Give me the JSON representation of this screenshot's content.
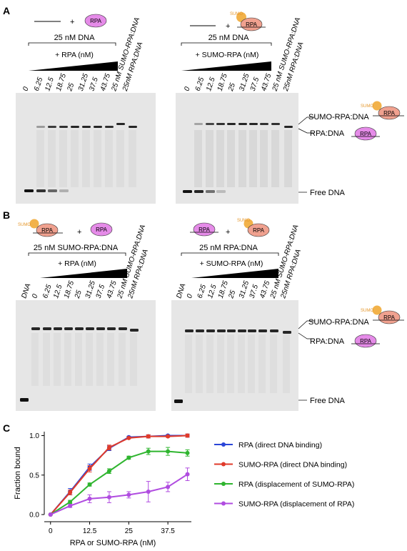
{
  "panels": {
    "A": "A",
    "B": "B",
    "C": "C"
  },
  "panel_A": {
    "left": {
      "rpa_badge": "RPA",
      "plus": "+",
      "dna_conc": "25 nM DNA",
      "titration": "+ RPA (nM)",
      "lanes": [
        "0",
        "6.25",
        "12.5",
        "18.75",
        "25",
        "31.25",
        "37.5",
        "43.75",
        "25 nM SUMO-RPA:DNA",
        "25nM RPA:DNA"
      ]
    },
    "right": {
      "sumo_badge": "SUMO",
      "rpa_badge": "RPA",
      "plus": "+",
      "dna_conc": "25 nM DNA",
      "titration": "+ SUMO-RPA (nM)",
      "lanes": [
        "0",
        "6.25",
        "12.5",
        "18.75",
        "25",
        "31.25",
        "37.5",
        "43.75",
        "25 nM SUMO-RPA:DNA",
        "25nM RPA:DNA"
      ]
    },
    "side_labels": {
      "sumo_rpa_dna": "SUMO-RPA:DNA",
      "rpa_dna": "RPA:DNA",
      "free_dna": "Free DNA",
      "sumo_badge": "SUMO",
      "rpa_badge": "RPA"
    }
  },
  "panel_B": {
    "left": {
      "sumo_badge": "SUMO",
      "rpa_badge": "RPA",
      "rpa_badge2": "RPA",
      "plus": "+",
      "complex": "25 nM SUMO-RPA:DNA",
      "titration": "+ RPA (nM)",
      "lanes": [
        "DNA",
        "0",
        "6.25",
        "12.5",
        "18.75",
        "25",
        "31.25",
        "37.5",
        "43.75",
        "25 nM SUMO-RPA:DNA",
        "25nM RPA:DNA"
      ]
    },
    "right": {
      "rpa_badge": "RPA",
      "sumo_badge": "SUMO",
      "rpa_badge2": "RPA",
      "plus": "+",
      "complex": "25 nM RPA:DNA",
      "titration": "+ SUMO-RPA (nM)",
      "lanes": [
        "DNA",
        "0",
        "6.25",
        "12.5",
        "18.75",
        "25",
        "31.25",
        "37.5",
        "43.75",
        "25 nM SUMO-RPA:DNA",
        "25nM RPA:DNA"
      ]
    },
    "side_labels": {
      "sumo_rpa_dna": "SUMO-RPA:DNA",
      "rpa_dna": "RPA:DNA",
      "free_dna": "Free DNA",
      "sumo_badge": "SUMO",
      "rpa_badge": "RPA"
    }
  },
  "colors": {
    "rpa": "#e58be8",
    "sumo": "#f2b24a",
    "sumo_rpa": "#f0a18f",
    "series_blue": "#2b46d8",
    "series_red": "#e03a2a",
    "series_green": "#2fb52f",
    "series_purple": "#b04ce0"
  },
  "chart_data": {
    "type": "line",
    "xlabel": "RPA or SUMO-RPA (nM)",
    "ylabel": "Fraction bound",
    "xlim": [
      -2,
      45
    ],
    "ylim": [
      0,
      1.05
    ],
    "xticks": [
      "0",
      "12.5",
      "25",
      "37.5"
    ],
    "yticks": [
      "0.0",
      "0.5",
      "1.0"
    ],
    "x": [
      0,
      6.25,
      12.5,
      18.75,
      25,
      31.25,
      37.5,
      43.75
    ],
    "series": [
      {
        "name": "RPA (direct DNA binding)",
        "color": "#2b46d8",
        "values": [
          0,
          0.29,
          0.6,
          0.84,
          0.98,
          0.99,
          1.0,
          1.0
        ],
        "err": [
          0,
          0.04,
          0.04,
          0.03,
          0.01,
          0.02,
          0.01,
          0.02
        ]
      },
      {
        "name": "SUMO-RPA (direct DNA binding)",
        "color": "#e03a2a",
        "values": [
          0,
          0.28,
          0.58,
          0.85,
          0.97,
          0.99,
          0.99,
          1.0
        ],
        "err": [
          0,
          0.03,
          0.04,
          0.03,
          0.01,
          0.02,
          0.01,
          0.02
        ]
      },
      {
        "name": "RPA (displacement of SUMO-RPA)",
        "color": "#2fb52f",
        "values": [
          0,
          0.16,
          0.38,
          0.55,
          0.72,
          0.8,
          0.8,
          0.78
        ],
        "err": [
          0,
          0.02,
          0.02,
          0.03,
          0.02,
          0.04,
          0.05,
          0.04
        ]
      },
      {
        "name": "SUMO-RPA (displacement of RPA)",
        "color": "#b04ce0",
        "values": [
          0,
          0.11,
          0.2,
          0.22,
          0.25,
          0.29,
          0.35,
          0.51
        ],
        "err": [
          0,
          0.02,
          0.05,
          0.07,
          0.04,
          0.13,
          0.06,
          0.08
        ]
      }
    ],
    "legend_position": "right"
  }
}
